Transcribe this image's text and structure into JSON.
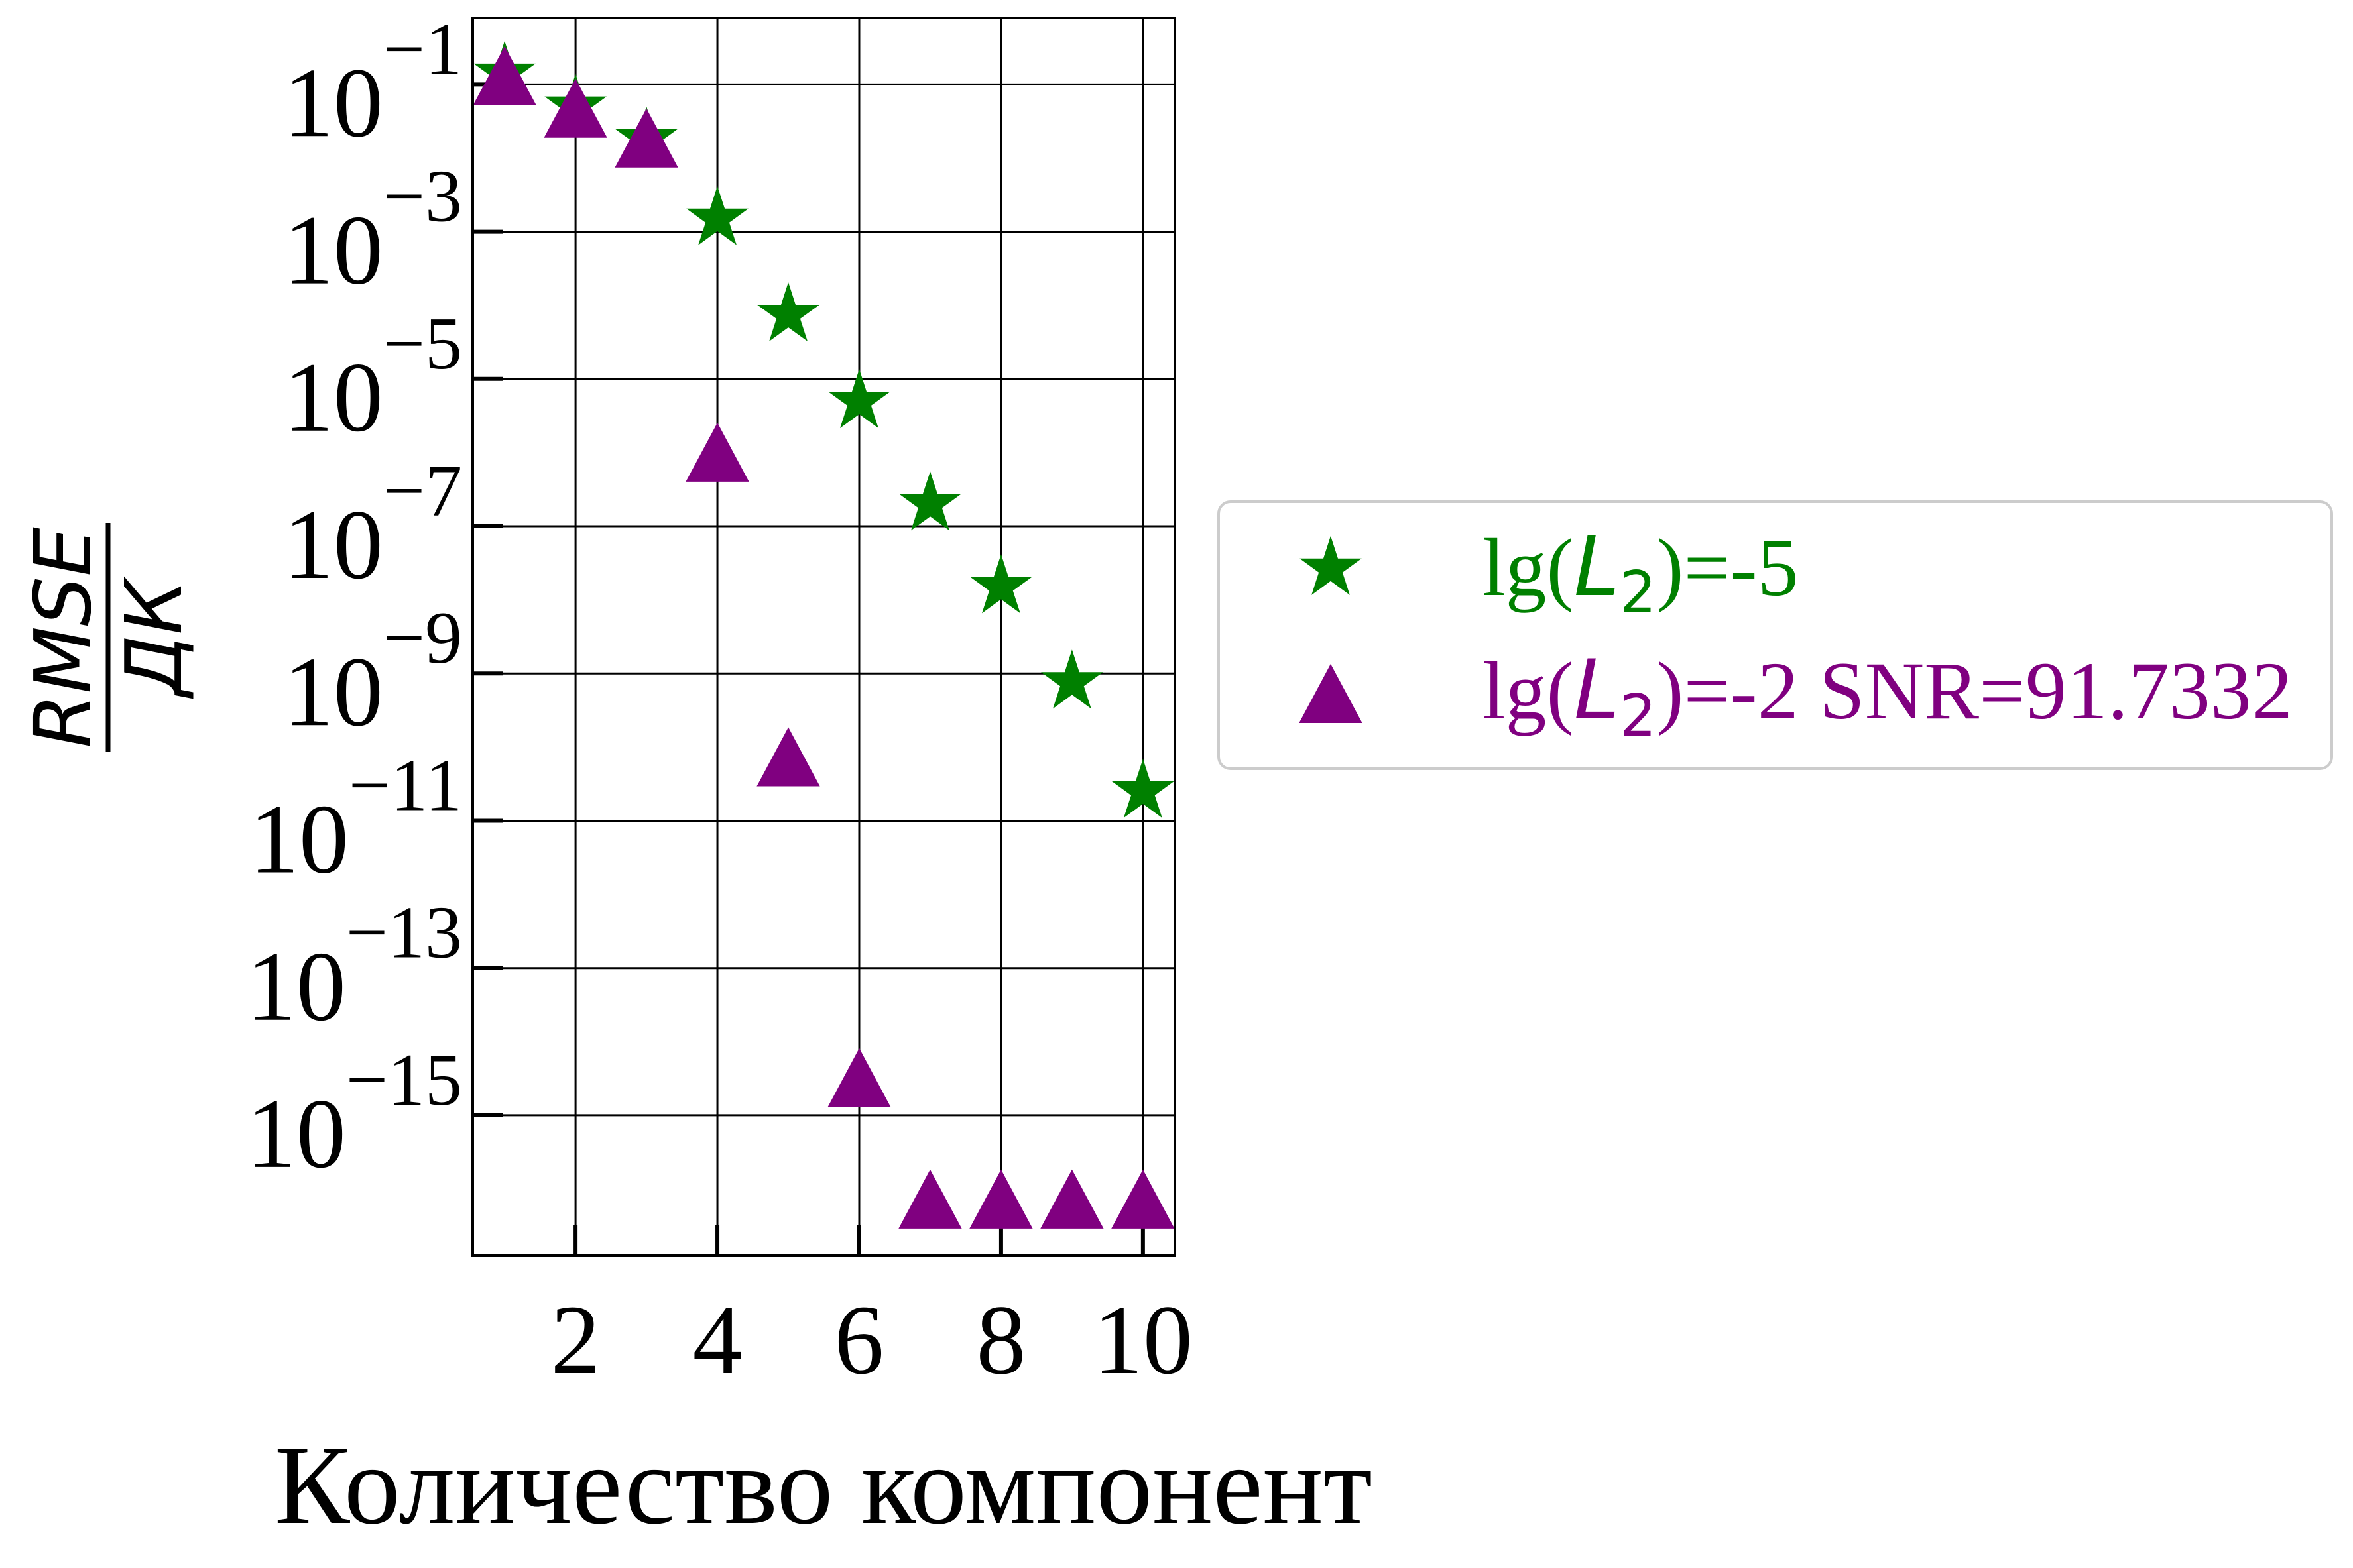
{
  "chart_data": {
    "type": "scatter",
    "xlabel": "Количество компонент",
    "ylabel": {
      "numerator": "RMSE",
      "denominator": "ДК"
    },
    "xlim": [
      0.55,
      10.45
    ],
    "ylim": [
      1.26e-17,
      0.8
    ],
    "ylog": true,
    "grid": true,
    "legend_position": "outside-right",
    "xticks": [
      2,
      4,
      6,
      8,
      10
    ],
    "xtick_labels": [
      "2",
      "4",
      "6",
      "8",
      "10"
    ],
    "yticks": [
      0.1,
      0.001,
      1e-05,
      1e-07,
      1e-09,
      1e-11,
      1e-13,
      1e-15
    ],
    "ytick_labels": [
      {
        "base": "10",
        "exponent": "−1"
      },
      {
        "base": "10",
        "exponent": "−3"
      },
      {
        "base": "10",
        "exponent": "−5"
      },
      {
        "base": "10",
        "exponent": "−7"
      },
      {
        "base": "10",
        "exponent": "−9"
      },
      {
        "base": "10",
        "exponent": "−11"
      },
      {
        "base": "10",
        "exponent": "−13"
      },
      {
        "base": "10",
        "exponent": "−15"
      }
    ],
    "x": [
      1,
      2,
      3,
      4,
      5,
      6,
      7,
      8,
      9,
      10
    ],
    "series": [
      {
        "marker": "star",
        "color": "#008000",
        "legend": {
          "pre": "lg(",
          "var": "L",
          "sub": "2",
          "post": ")=-5"
        },
        "values": [
          0.14,
          0.05,
          0.018,
          0.0015,
          7.4e-05,
          4.9e-06,
          2e-07,
          1.5e-08,
          7.6e-10,
          2.5e-11
        ]
      },
      {
        "marker": "triangle",
        "color": "#800080",
        "legend": {
          "pre": "lg(",
          "var": "L",
          "sub": "2",
          "post": ")=-2 SNR=91.7332"
        },
        "values": [
          0.13,
          0.047,
          0.0185,
          1e-06,
          7.3e-11,
          3.2e-15,
          7.2e-17,
          7.2e-17,
          7.2e-17,
          7.2e-17
        ]
      }
    ]
  }
}
